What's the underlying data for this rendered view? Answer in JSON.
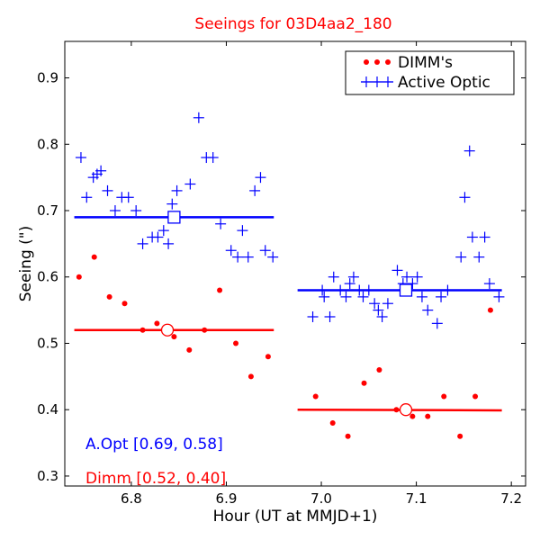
{
  "chart_data": {
    "type": "scatter",
    "title": "Seeings for 03D4aa2_180",
    "xlabel": "Hour (UT at MMJD+1)",
    "ylabel": "Seeing (\")",
    "xlim": [
      6.73,
      7.215
    ],
    "ylim": [
      0.285,
      0.955
    ],
    "x_ticks": [
      6.8,
      6.9,
      7.0,
      7.1,
      7.2
    ],
    "x_tick_labels": [
      "6.8",
      "6.9",
      "7.0",
      "7.1",
      "7.2"
    ],
    "y_ticks": [
      0.3,
      0.4,
      0.5,
      0.6,
      0.7,
      0.8,
      0.9
    ],
    "y_tick_labels": [
      "0.3",
      "0.4",
      "0.5",
      "0.6",
      "0.7",
      "0.8",
      "0.9"
    ],
    "legend": {
      "position": "top-right",
      "entries": [
        {
          "label": "DIMM's",
          "series": "dimm"
        },
        {
          "label": "Active Optic",
          "series": "active_optic"
        }
      ]
    },
    "annotations": [
      {
        "text": "A.Opt [0.69, 0.58]",
        "color": "#0000ff",
        "anchor": "lower-left-upper"
      },
      {
        "text": "Dimm [0.52, 0.40]",
        "color": "#ff0000",
        "anchor": "lower-left"
      }
    ],
    "series": [
      {
        "name": "Active Optic",
        "key": "active_optic",
        "marker": "plus",
        "color": "#0000ff",
        "points": [
          [
            6.747,
            0.78
          ],
          [
            6.753,
            0.72
          ],
          [
            6.76,
            0.75
          ],
          [
            6.764,
            0.755
          ],
          [
            6.768,
            0.76
          ],
          [
            6.775,
            0.73
          ],
          [
            6.783,
            0.7
          ],
          [
            6.79,
            0.72
          ],
          [
            6.797,
            0.72
          ],
          [
            6.805,
            0.7
          ],
          [
            6.812,
            0.65
          ],
          [
            6.822,
            0.66
          ],
          [
            6.828,
            0.66
          ],
          [
            6.834,
            0.67
          ],
          [
            6.839,
            0.65
          ],
          [
            6.843,
            0.71
          ],
          [
            6.848,
            0.73
          ],
          [
            6.862,
            0.74
          ],
          [
            6.871,
            0.84
          ],
          [
            6.879,
            0.78
          ],
          [
            6.886,
            0.78
          ],
          [
            6.894,
            0.68
          ],
          [
            6.905,
            0.64
          ],
          [
            6.912,
            0.63
          ],
          [
            6.917,
            0.67
          ],
          [
            6.923,
            0.63
          ],
          [
            6.93,
            0.73
          ],
          [
            6.936,
            0.75
          ],
          [
            6.941,
            0.64
          ],
          [
            6.949,
            0.63
          ],
          [
            6.991,
            0.54
          ],
          [
            7.001,
            0.58
          ],
          [
            7.003,
            0.57
          ],
          [
            7.009,
            0.54
          ],
          [
            7.013,
            0.6
          ],
          [
            7.02,
            0.58
          ],
          [
            7.026,
            0.57
          ],
          [
            7.03,
            0.59
          ],
          [
            7.034,
            0.6
          ],
          [
            7.04,
            0.58
          ],
          [
            7.044,
            0.57
          ],
          [
            7.05,
            0.58
          ],
          [
            7.056,
            0.56
          ],
          [
            7.06,
            0.55
          ],
          [
            7.064,
            0.54
          ],
          [
            7.07,
            0.56
          ],
          [
            7.08,
            0.61
          ],
          [
            7.086,
            0.59
          ],
          [
            7.09,
            0.6
          ],
          [
            7.096,
            0.59
          ],
          [
            7.101,
            0.6
          ],
          [
            7.106,
            0.57
          ],
          [
            7.112,
            0.55
          ],
          [
            7.122,
            0.53
          ],
          [
            7.126,
            0.57
          ],
          [
            7.133,
            0.58
          ],
          [
            7.147,
            0.63
          ],
          [
            7.151,
            0.72
          ],
          [
            7.156,
            0.79
          ],
          [
            7.159,
            0.66
          ],
          [
            7.166,
            0.63
          ],
          [
            7.172,
            0.66
          ],
          [
            7.177,
            0.59
          ],
          [
            7.187,
            0.57
          ]
        ],
        "mean_lines": [
          {
            "x": [
              6.74,
              6.95
            ],
            "y": [
              0.69,
              0.69
            ]
          },
          {
            "x": [
              6.975,
              7.19
            ],
            "y": [
              0.58,
              0.58
            ]
          }
        ],
        "mean_markers": [
          [
            6.845,
            0.69
          ],
          [
            7.089,
            0.58
          ]
        ]
      },
      {
        "name": "DIMM's",
        "key": "dimm",
        "marker": "dot",
        "color": "#ff0000",
        "points": [
          [
            6.745,
            0.6
          ],
          [
            6.761,
            0.63
          ],
          [
            6.777,
            0.57
          ],
          [
            6.793,
            0.56
          ],
          [
            6.812,
            0.52
          ],
          [
            6.827,
            0.53
          ],
          [
            6.845,
            0.51
          ],
          [
            6.861,
            0.49
          ],
          [
            6.877,
            0.52
          ],
          [
            6.893,
            0.58
          ],
          [
            6.91,
            0.5
          ],
          [
            6.926,
            0.45
          ],
          [
            6.944,
            0.48
          ],
          [
            6.994,
            0.42
          ],
          [
            7.012,
            0.38
          ],
          [
            7.028,
            0.36
          ],
          [
            7.045,
            0.44
          ],
          [
            7.061,
            0.46
          ],
          [
            7.079,
            0.4
          ],
          [
            7.096,
            0.39
          ],
          [
            7.112,
            0.39
          ],
          [
            7.129,
            0.42
          ],
          [
            7.146,
            0.36
          ],
          [
            7.162,
            0.42
          ],
          [
            7.178,
            0.55
          ]
        ],
        "mean_lines": [
          {
            "x": [
              6.74,
              6.95
            ],
            "y": [
              0.52,
              0.52
            ]
          },
          {
            "x": [
              6.975,
              7.19
            ],
            "y": [
              0.4,
              0.399
            ]
          }
        ],
        "mean_markers": [
          [
            6.838,
            0.52
          ],
          [
            7.089,
            0.4
          ]
        ]
      }
    ]
  }
}
